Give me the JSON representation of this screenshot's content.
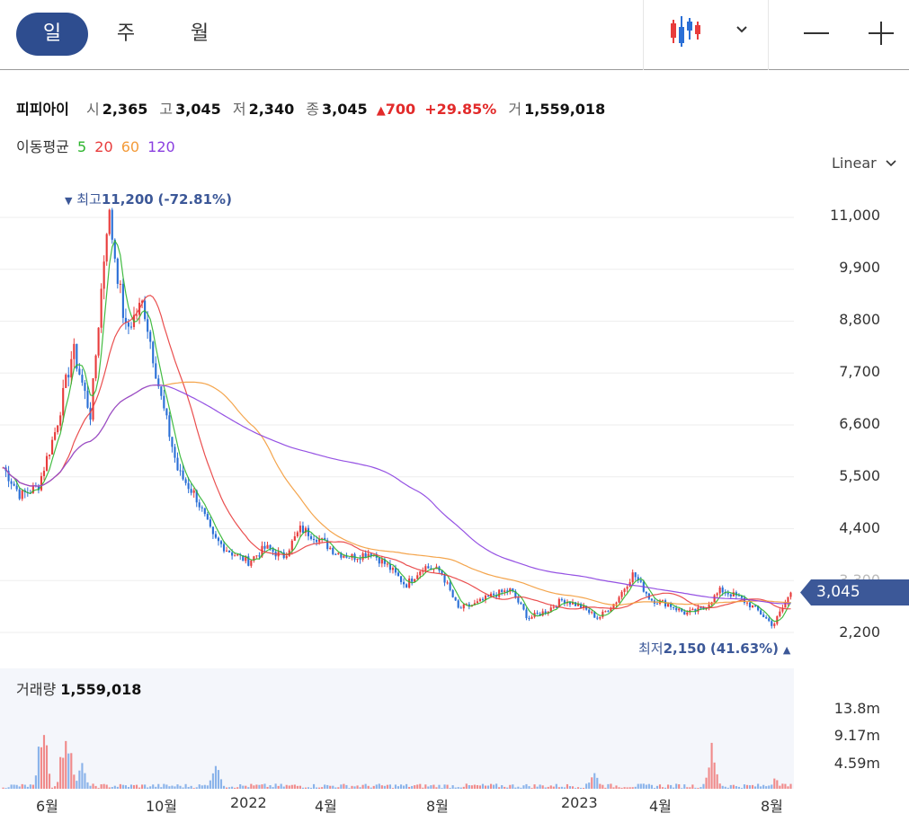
{
  "toolbar": {
    "tabs": [
      {
        "label": "일",
        "active": true
      },
      {
        "label": "주",
        "active": false
      },
      {
        "label": "월",
        "active": false
      }
    ],
    "chart_type_icon": "candlestick-icon",
    "dropdown_icon": "chevron-down-icon",
    "zoom_out_icon": "minus-icon",
    "zoom_in_icon": "plus-icon"
  },
  "quote": {
    "name": "피피아이",
    "open_label": "시",
    "open": "2,365",
    "high_label": "고",
    "high": "3,045",
    "low_label": "저",
    "low": "2,340",
    "close_label": "종",
    "close": "3,045",
    "change": "700",
    "change_pct": "+29.85%",
    "volume_label": "거",
    "volume": "1,559,018"
  },
  "moving_average": {
    "label": "이동평균",
    "periods": [
      {
        "label": "5",
        "color": "#2db52d"
      },
      {
        "label": "20",
        "color": "#e83c3c"
      },
      {
        "label": "60",
        "color": "#f39b3a"
      },
      {
        "label": "120",
        "color": "#8a3fe0"
      }
    ]
  },
  "scale": {
    "label": "Linear",
    "icon": "chevron-down-icon"
  },
  "colors": {
    "up": "#e83c3c",
    "down": "#2a6fd6",
    "accent": "#3c5898"
  },
  "chart_data": {
    "type": "candlestick",
    "y_ticks": [
      "11,000",
      "9,900",
      "8,800",
      "7,700",
      "6,600",
      "5,500",
      "4,400",
      "3,300",
      "2,200"
    ],
    "ylim": [
      1650,
      11550
    ],
    "x_ticks": [
      "6월",
      "10월",
      "2022",
      "4월",
      "8월",
      "2023",
      "4월",
      "8월"
    ],
    "current_price": "3,045",
    "high_marker": {
      "label": "최고",
      "value": "11,200",
      "pct": "(-72.81%)"
    },
    "low_marker": {
      "label": "최저",
      "value": "2,150",
      "pct": "(41.63%)"
    },
    "price_anchors": [
      5700,
      5100,
      5300,
      6500,
      8200,
      6800,
      11200,
      8600,
      9200,
      7200,
      5600,
      5100,
      4200,
      3900,
      3700,
      4000,
      3800,
      4400,
      4200,
      3900,
      3800,
      3900,
      3600,
      3200,
      3600,
      3500,
      2700,
      2800,
      3000,
      3100,
      2500,
      2650,
      2900,
      2750,
      2500,
      2850,
      3450,
      2900,
      2800,
      2600,
      2700,
      3100,
      2950,
      2700,
      2350,
      3045
    ],
    "volume": {
      "title": "거래량",
      "value": "1,559,018",
      "ticks": [
        "13.8m",
        "9.17m",
        "4.59m"
      ],
      "ylim": [
        0,
        18000000
      ],
      "spikes": [
        {
          "at": 0.05,
          "value": 17000000
        },
        {
          "at": 0.08,
          "value": 17500000
        },
        {
          "at": 0.1,
          "value": 6000000
        },
        {
          "at": 0.27,
          "value": 7000000
        },
        {
          "at": 0.75,
          "value": 4200000
        },
        {
          "at": 0.9,
          "value": 10000000
        },
        {
          "at": 0.98,
          "value": 2500000
        }
      ]
    }
  }
}
